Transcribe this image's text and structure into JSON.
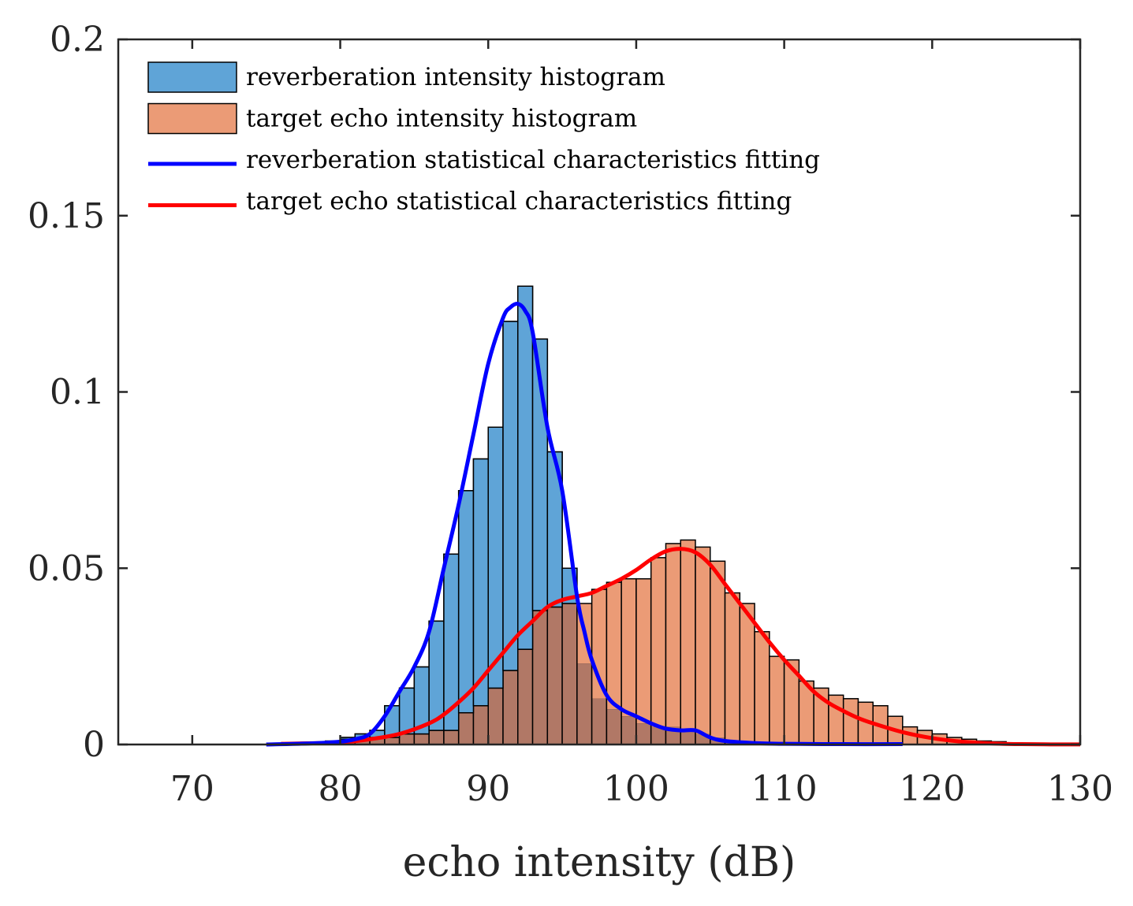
{
  "chart_data": {
    "type": "bar",
    "title": "",
    "xlabel": "echo intensity (dB)",
    "ylabel": "",
    "xlim": [
      65,
      130
    ],
    "ylim": [
      0,
      0.2
    ],
    "x_ticks": [
      "70",
      "80",
      "90",
      "100",
      "110",
      "120",
      "130"
    ],
    "y_ticks": [
      "0",
      "0.05",
      "0.1",
      "0.15",
      "0.2"
    ],
    "bin_width": 1,
    "legend_position": "top-left",
    "colors": {
      "reverb_fill": "#5fa4d7",
      "target_fill": "#eb9b76",
      "overlap_fill": "#b17866",
      "reverb_line": "#0000ff",
      "target_line": "#ff0000",
      "axis": "#262626"
    },
    "series": [
      {
        "name": "reverberation intensity histogram",
        "kind": "histogram",
        "bin_starts": [
          80,
          81,
          82,
          83,
          84,
          85,
          86,
          87,
          88,
          89,
          90,
          91,
          92,
          93,
          94,
          95,
          96,
          97,
          98,
          99,
          100,
          101,
          102,
          103,
          104,
          105,
          106
        ],
        "values": [
          0.002,
          0.003,
          0.004,
          0.011,
          0.016,
          0.022,
          0.035,
          0.054,
          0.072,
          0.081,
          0.09,
          0.12,
          0.13,
          0.115,
          0.083,
          0.05,
          0.023,
          0.013,
          0.01,
          0.008,
          0.006,
          0.005,
          0.005,
          0.004,
          0.003,
          0.002,
          0.001
        ]
      },
      {
        "name": "target echo intensity histogram",
        "kind": "histogram",
        "bin_starts": [
          77,
          78,
          79,
          80,
          81,
          82,
          83,
          84,
          85,
          86,
          87,
          88,
          89,
          90,
          91,
          92,
          93,
          94,
          95,
          96,
          97,
          98,
          99,
          100,
          101,
          102,
          103,
          104,
          105,
          106,
          107,
          108,
          109,
          110,
          111,
          112,
          113,
          114,
          115,
          116,
          117,
          118,
          119,
          120,
          121,
          122,
          123,
          124,
          125,
          126,
          127,
          128,
          129
        ],
        "values": [
          0.0005,
          0.0007,
          0.001,
          0.0015,
          0.0015,
          0.002,
          0.002,
          0.003,
          0.003,
          0.004,
          0.004,
          0.009,
          0.011,
          0.016,
          0.021,
          0.027,
          0.038,
          0.039,
          0.04,
          0.04,
          0.044,
          0.046,
          0.047,
          0.047,
          0.053,
          0.057,
          0.058,
          0.056,
          0.052,
          0.043,
          0.04,
          0.032,
          0.025,
          0.024,
          0.018,
          0.016,
          0.014,
          0.013,
          0.012,
          0.011,
          0.008,
          0.005,
          0.004,
          0.003,
          0.002,
          0.0015,
          0.001,
          0.0008,
          0.0005,
          0.0004,
          0.0003,
          0.0002,
          0.0002
        ]
      },
      {
        "name": "reverberation statistical characteristics fitting",
        "kind": "line",
        "x": [
          75,
          78,
          80,
          81,
          82,
          83,
          84,
          85,
          86,
          87,
          88,
          89,
          90,
          91,
          91.5,
          92,
          92.5,
          93,
          94,
          95,
          96,
          96.5,
          97,
          98,
          99,
          100,
          101,
          102,
          103,
          104,
          105,
          106,
          108,
          110,
          114,
          118
        ],
        "y": [
          0,
          0.0003,
          0.0008,
          0.0015,
          0.003,
          0.008,
          0.015,
          0.022,
          0.032,
          0.05,
          0.068,
          0.088,
          0.108,
          0.121,
          0.124,
          0.125,
          0.123,
          0.117,
          0.09,
          0.072,
          0.042,
          0.032,
          0.024,
          0.014,
          0.01,
          0.008,
          0.006,
          0.0045,
          0.004,
          0.004,
          0.002,
          0.001,
          0.0004,
          0.0002,
          0.0001,
          0.0001
        ]
      },
      {
        "name": "target echo statistical characteristics fitting",
        "kind": "line",
        "x": [
          76,
          80,
          82,
          84,
          86,
          87,
          88,
          89,
          90,
          91,
          92,
          93,
          94,
          95,
          96,
          97,
          98,
          99,
          100,
          101,
          102,
          103,
          104,
          105,
          106,
          107,
          108,
          109,
          110,
          111,
          112,
          113,
          114,
          115,
          116,
          118,
          120,
          122,
          124,
          126,
          128,
          130
        ],
        "y": [
          0.0002,
          0.0006,
          0.0015,
          0.003,
          0.006,
          0.0085,
          0.012,
          0.016,
          0.021,
          0.026,
          0.031,
          0.035,
          0.039,
          0.041,
          0.042,
          0.043,
          0.045,
          0.047,
          0.0495,
          0.0525,
          0.0548,
          0.0555,
          0.0545,
          0.051,
          0.0455,
          0.04,
          0.0345,
          0.029,
          0.024,
          0.0195,
          0.015,
          0.0118,
          0.0095,
          0.0075,
          0.006,
          0.0035,
          0.0018,
          0.0008,
          0.0003,
          0.0001,
          4e-05,
          2e-05
        ]
      }
    ]
  }
}
